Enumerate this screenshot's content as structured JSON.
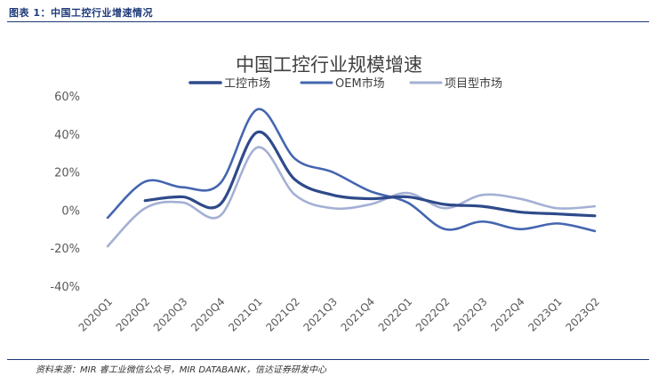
{
  "header": {
    "caption": "图表 1：中国工控行业增速情况"
  },
  "footer": {
    "source": "资料来源：MIR 睿工业微信公众号，MIR DATABANK，信达证券研发中心"
  },
  "chart_data": {
    "type": "line",
    "title": "中国工控行业规模增速",
    "xlabel": "",
    "ylabel": "",
    "categories": [
      "2020Q1",
      "2020Q2",
      "2020Q3",
      "2020Q4",
      "2021Q1",
      "2021Q2",
      "2021Q3",
      "2021Q4",
      "2022Q1",
      "2022Q2",
      "2022Q3",
      "2022Q4",
      "2023Q1",
      "2023Q2"
    ],
    "ylim": [
      -40,
      60
    ],
    "yticks": [
      -40,
      -20,
      0,
      20,
      40,
      60
    ],
    "ytick_suffix": "%",
    "legend_position": "top-center",
    "series": [
      {
        "name": "工控市场",
        "color": "#2e4a8a",
        "width": 3.2,
        "values": [
          null,
          5,
          7,
          3,
          41,
          16,
          8,
          6,
          7,
          3,
          2,
          -1,
          -2,
          -3
        ]
      },
      {
        "name": "OEM市场",
        "color": "#4466b0",
        "width": 2.6,
        "values": [
          -4,
          15,
          12,
          14,
          53,
          27,
          20,
          10,
          4,
          -10,
          -6,
          -10,
          -7,
          -11
        ]
      },
      {
        "name": "项目型市场",
        "color": "#a4b0d4",
        "width": 2.6,
        "values": [
          -19,
          1,
          4,
          -3,
          33,
          8,
          1,
          3,
          9,
          1,
          8,
          6,
          1,
          2
        ]
      }
    ]
  }
}
